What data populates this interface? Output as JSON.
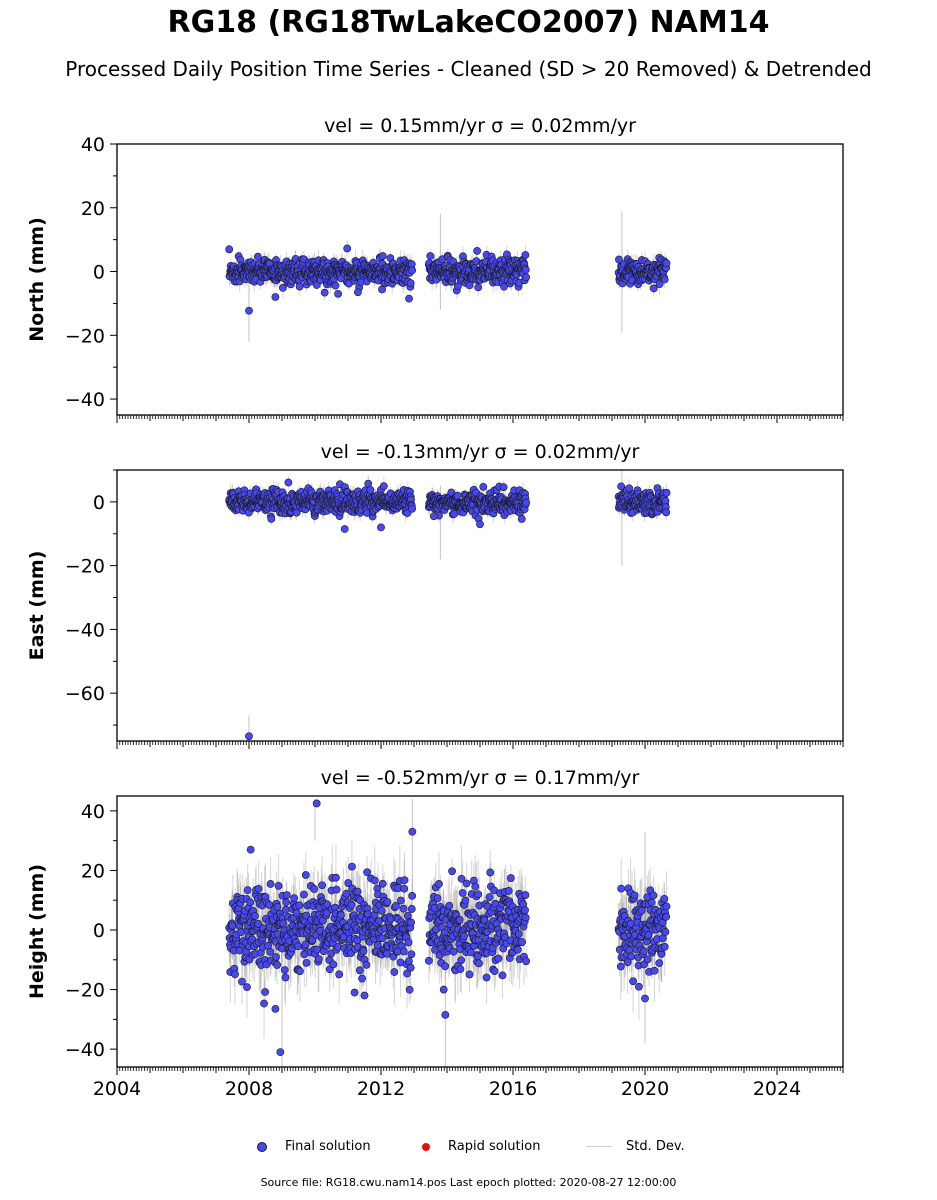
{
  "header": {
    "title": "RG18 (RG18TwLakeCO2007) NAM14",
    "subtitle": "Processed Daily Position Time Series - Cleaned (SD > 20 Removed) & Detrended"
  },
  "legend": {
    "final_label": "Final solution",
    "rapid_label": "Rapid solution",
    "stddev_label": "Std. Dev."
  },
  "footer": {
    "text": "Source file: RG18.cwu.nam14.pos  Last epoch plotted: 2020-08-27 12:00:00"
  },
  "colors": {
    "final": "#4848f0",
    "final_edge": "#1a1a1a",
    "rapid": "#e01010",
    "stddev": "#888888"
  },
  "chart_data": [
    {
      "type": "scatter",
      "title": "vel = 0.15mm/yr   σ = 0.02mm/yr",
      "ylabel": "North (mm)",
      "xlim": [
        2004,
        2026
      ],
      "ylim": [
        -45,
        40
      ],
      "yticks": [
        -40,
        -20,
        0,
        20,
        40
      ],
      "xticks": [
        2004,
        2008,
        2012,
        2016,
        2020,
        2024
      ],
      "show_xtick_labels": false,
      "segments": [
        [
          2007.4,
          2012.95
        ],
        [
          2013.45,
          2016.4
        ],
        [
          2019.2,
          2020.66
        ]
      ],
      "scatter_sd": 2.0,
      "outliers": [
        [
          2008.0,
          -12.3
        ],
        [
          2008.8,
          -8
        ],
        [
          2012.85,
          -8.5
        ],
        [
          2011.3,
          -6.5
        ],
        [
          2010.7,
          -7
        ]
      ],
      "stddev_spikes": [
        [
          2013.8,
          18,
          -12
        ],
        [
          2019.3,
          19,
          -19
        ],
        [
          2008.0,
          2,
          -22
        ]
      ]
    },
    {
      "type": "scatter",
      "title": "vel = -0.13mm/yr   σ = 0.02mm/yr",
      "ylabel": "East (mm)",
      "xlim": [
        2004,
        2026
      ],
      "ylim": [
        -75,
        10
      ],
      "yticks": [
        -60,
        -40,
        -20,
        0
      ],
      "xticks": [
        2004,
        2008,
        2012,
        2016,
        2020,
        2024
      ],
      "show_xtick_labels": false,
      "segments": [
        [
          2007.4,
          2012.95
        ],
        [
          2013.45,
          2016.4
        ],
        [
          2019.2,
          2020.66
        ]
      ],
      "scatter_sd": 1.8,
      "outliers": [
        [
          2008.0,
          -73.5
        ],
        [
          2010.9,
          -8.5
        ],
        [
          2012.0,
          -8
        ],
        [
          2013.6,
          -4.5
        ],
        [
          2015.0,
          -7
        ]
      ],
      "stddev_spikes": [
        [
          2008.0,
          -67,
          -75
        ],
        [
          2013.8,
          5,
          -18
        ],
        [
          2019.3,
          10,
          -20
        ]
      ]
    },
    {
      "type": "scatter",
      "title": "vel = -0.52mm/yr   σ = 0.17mm/yr",
      "ylabel": "Height (mm)",
      "xlim": [
        2004,
        2026
      ],
      "ylim": [
        -46,
        45
      ],
      "yticks": [
        -40,
        -20,
        0,
        20,
        40
      ],
      "xticks": [
        2004,
        2008,
        2012,
        2016,
        2020,
        2024
      ],
      "show_xtick_labels": true,
      "segments": [
        [
          2007.4,
          2012.95
        ],
        [
          2013.45,
          2016.4
        ],
        [
          2019.2,
          2020.66
        ]
      ],
      "scatter_sd": 7.0,
      "outliers": [
        [
          2010.05,
          42.5
        ],
        [
          2012.95,
          33
        ],
        [
          2008.95,
          -41
        ],
        [
          2008.8,
          -26.5
        ],
        [
          2013.95,
          -28.5
        ],
        [
          2013.9,
          -20
        ],
        [
          2020.0,
          -23
        ],
        [
          2008.05,
          27
        ],
        [
          2011.5,
          -22
        ],
        [
          2011.2,
          -21
        ]
      ],
      "stddev_spikes": [
        [
          2009.0,
          2,
          -46
        ],
        [
          2012.95,
          44,
          10
        ],
        [
          2013.95,
          -10,
          -46
        ],
        [
          2010.0,
          44,
          30
        ],
        [
          2020.0,
          33,
          -38
        ]
      ]
    }
  ]
}
